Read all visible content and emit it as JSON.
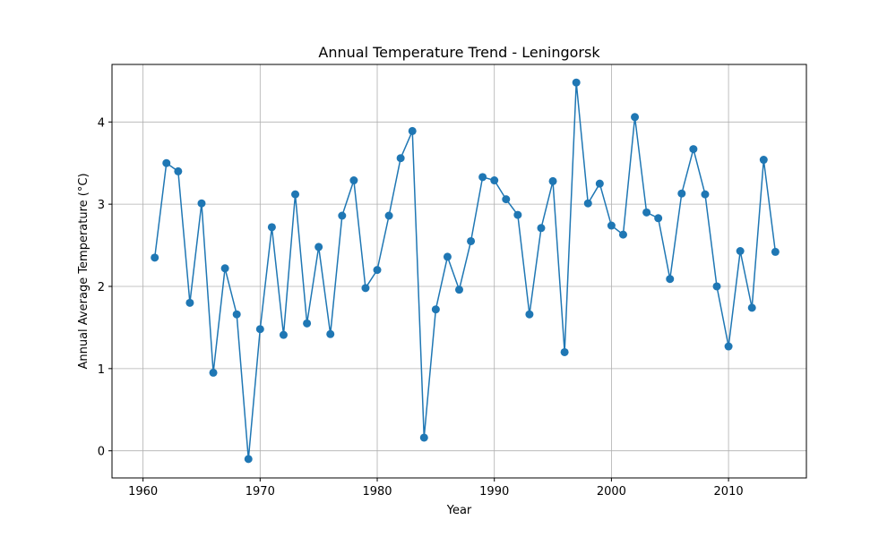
{
  "chart_data": {
    "type": "line",
    "title": "Annual Temperature Trend - Leningorsk",
    "xlabel": "Year",
    "ylabel": "Annual Average Temperature (°C)",
    "xlim": [
      1957.35,
      2016.65
    ],
    "ylim": [
      -0.33,
      4.7
    ],
    "xticks": [
      1960,
      1970,
      1980,
      1990,
      2000,
      2010
    ],
    "yticks": [
      0,
      1,
      2,
      3,
      4
    ],
    "grid": true,
    "marker": "circle",
    "color": "#1f77b4",
    "series": [
      {
        "x": [
          1961,
          1962,
          1963,
          1964,
          1965,
          1966,
          1967,
          1968,
          1969,
          1970,
          1971,
          1972,
          1973,
          1974,
          1975,
          1976,
          1977,
          1978,
          1979,
          1980,
          1981,
          1982,
          1983,
          1984,
          1985,
          1986,
          1987,
          1988,
          1989,
          1990,
          1991,
          1992,
          1993,
          1994,
          1995,
          1996,
          1997,
          1998,
          1999,
          2000,
          2001,
          2002,
          2003,
          2004,
          2005,
          2006,
          2007,
          2008,
          2009,
          2010,
          2011,
          2012,
          2013,
          2014
        ],
        "y": [
          2.35,
          3.5,
          3.4,
          1.8,
          3.01,
          0.95,
          2.22,
          1.66,
          -0.1,
          1.48,
          2.72,
          1.41,
          3.12,
          1.55,
          2.48,
          1.42,
          2.86,
          3.29,
          1.98,
          2.2,
          2.86,
          3.56,
          3.89,
          0.16,
          1.72,
          2.36,
          1.96,
          2.55,
          3.33,
          3.29,
          3.06,
          2.87,
          1.66,
          2.71,
          3.28,
          1.2,
          4.48,
          3.01,
          3.25,
          2.74,
          2.63,
          4.06,
          2.9,
          2.83,
          2.09,
          3.13,
          3.67,
          3.12,
          2.0,
          1.27,
          2.43,
          1.74,
          3.54,
          2.42
        ]
      }
    ]
  }
}
